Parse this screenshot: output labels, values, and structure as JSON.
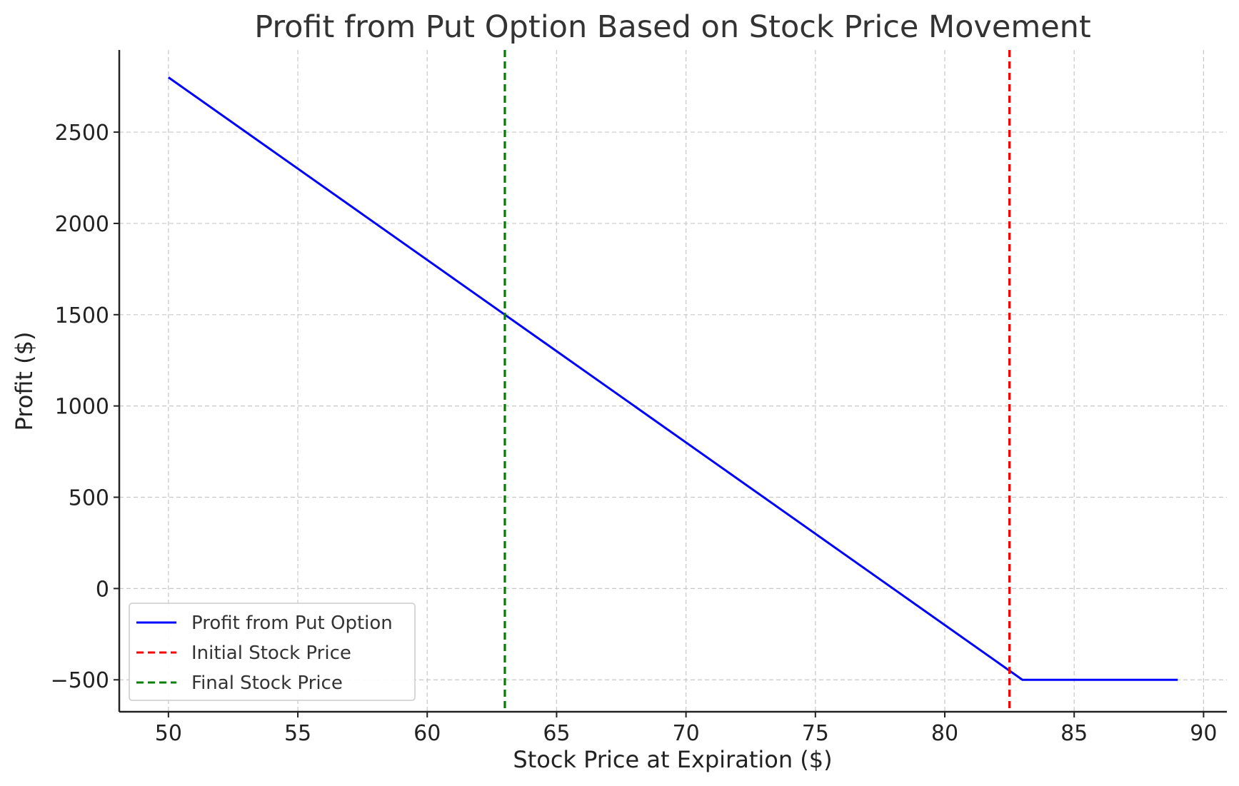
{
  "chart_data": {
    "type": "line",
    "title": "Profit from Put Option Based on Stock Price Movement",
    "xlabel": "Stock Price at Expiration ($)",
    "ylabel": "Profit ($)",
    "xlim": [
      48.1,
      90.9
    ],
    "ylim": [
      -675,
      2950
    ],
    "xticks": [
      50,
      55,
      60,
      65,
      70,
      75,
      80,
      85,
      90
    ],
    "yticks": [
      -500,
      0,
      500,
      1000,
      1500,
      2000,
      2500
    ],
    "ytick_labels": [
      "−500",
      "0",
      "500",
      "1000",
      "1500",
      "2000",
      "2500"
    ],
    "grid": true,
    "legend_position": "lower-left",
    "series": [
      {
        "name": "Profit from Put Option",
        "style": "solid",
        "color": "#0000ff",
        "x": [
          50,
          83,
          89
        ],
        "y": [
          2800,
          -500,
          -500
        ]
      }
    ],
    "vlines": [
      {
        "name": "Initial Stock Price",
        "x": 82.5,
        "color": "#ff0000",
        "style": "dashed"
      },
      {
        "name": "Final Stock Price",
        "x": 63,
        "color": "#008000",
        "style": "dashed"
      }
    ]
  }
}
